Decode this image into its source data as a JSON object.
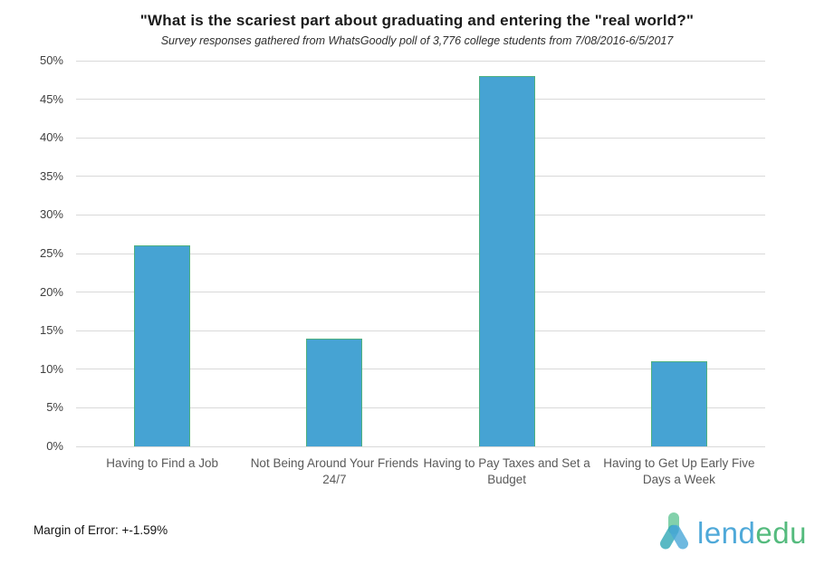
{
  "header": {
    "title": "\"What is the scariest part about graduating and entering the \"real world?\"",
    "subtitle": "Survey responses gathered from WhatsGoodly poll of 3,776 college students from 7/08/2016-6/5/2017"
  },
  "chart_data": {
    "type": "bar",
    "categories": [
      "Having to Find a Job",
      "Not Being Around Your Friends 24/7",
      "Having to Pay Taxes and Set a Budget",
      "Having to Get Up Early Five Days a Week"
    ],
    "values": [
      26,
      14,
      48,
      11
    ],
    "title": "\"What is the scariest part about graduating and entering the \"real world?\"",
    "subtitle": "Survey responses gathered from WhatsGoodly poll of 3,776 college students from 7/08/2016-6/5/2017",
    "xlabel": "",
    "ylabel": "",
    "ylim": [
      0,
      50
    ],
    "ytick_step": 5,
    "ytick_suffix": "%",
    "grid": true,
    "legend_position": "none",
    "bar_fill_color": "#46a3d3",
    "bar_border_color": "#4fb07f",
    "gridline_color": "#d9d9d9"
  },
  "footer": {
    "margin_of_error": "Margin of Error: +-1.59%"
  },
  "logo": {
    "icon": "lendedu-person-icon",
    "text_lend": "lend",
    "text_edu": "edu",
    "lend_color": "#4fa9d9",
    "edu_color": "#55bb7e"
  }
}
